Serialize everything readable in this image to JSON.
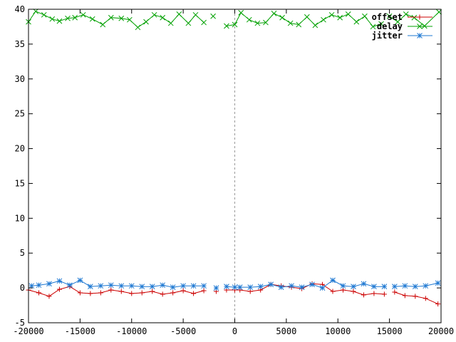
{
  "chart_data": {
    "type": "line",
    "xlim": [
      -20000,
      20000
    ],
    "ylim": [
      -5,
      40
    ],
    "x_ticks": [
      -20000,
      -15000,
      -10000,
      -5000,
      0,
      5000,
      10000,
      15000,
      20000
    ],
    "y_ticks": [
      -5,
      0,
      5,
      10,
      15,
      20,
      25,
      30,
      35,
      40
    ],
    "grid": false,
    "zero_line": "vertical dashed line at x=0",
    "legend_position": "top-right",
    "colors": {
      "offset": "#cc0000",
      "delay": "#00a000",
      "jitter": "#1e78d2",
      "zero_line": "#999999"
    },
    "series": [
      {
        "name": "offset",
        "marker": "plus",
        "segments": [
          [
            [
              -20000,
              -0.3
            ],
            [
              -19000,
              -0.7
            ],
            [
              -18000,
              -1.2
            ],
            [
              -17000,
              -0.2
            ],
            [
              -16000,
              0.2
            ],
            [
              -15000,
              -0.7
            ],
            [
              -14000,
              -0.8
            ],
            [
              -13000,
              -0.7
            ],
            [
              -12000,
              -0.3
            ],
            [
              -11000,
              -0.5
            ],
            [
              -10000,
              -0.8
            ],
            [
              -9000,
              -0.7
            ],
            [
              -8000,
              -0.5
            ],
            [
              -7000,
              -0.9
            ],
            [
              -6000,
              -0.7
            ],
            [
              -5000,
              -0.4
            ],
            [
              -4000,
              -0.8
            ],
            [
              -3000,
              -0.4
            ]
          ],
          [
            [
              -1800,
              -0.5
            ]
          ],
          [
            [
              -800,
              -0.3
            ],
            [
              0,
              -0.3
            ],
            [
              500,
              -0.3
            ],
            [
              1500,
              -0.5
            ],
            [
              2500,
              -0.3
            ],
            [
              3500,
              0.5
            ],
            [
              4500,
              0.3
            ],
            [
              5500,
              0.1
            ],
            [
              6500,
              -0.1
            ],
            [
              7500,
              0.6
            ],
            [
              8500,
              0.5
            ],
            [
              9500,
              -0.5
            ],
            [
              10500,
              -0.3
            ],
            [
              11500,
              -0.5
            ],
            [
              12500,
              -1.0
            ],
            [
              13500,
              -0.8
            ],
            [
              14500,
              -0.9
            ]
          ],
          [
            [
              15500,
              -0.6
            ],
            [
              16500,
              -1.1
            ],
            [
              17500,
              -1.2
            ],
            [
              18500,
              -1.5
            ],
            [
              19700,
              -2.3
            ]
          ]
        ]
      },
      {
        "name": "delay",
        "marker": "cross",
        "segments": [
          [
            [
              -20000,
              38.2
            ],
            [
              -19300,
              39.7
            ],
            [
              -18500,
              39.2
            ],
            [
              -17700,
              38.6
            ],
            [
              -17000,
              38.3
            ],
            [
              -16200,
              38.7
            ],
            [
              -15500,
              38.8
            ],
            [
              -14700,
              39.2
            ],
            [
              -13800,
              38.6
            ],
            [
              -12800,
              37.8
            ],
            [
              -12000,
              38.8
            ],
            [
              -11000,
              38.7
            ],
            [
              -10200,
              38.5
            ],
            [
              -9400,
              37.4
            ],
            [
              -8600,
              38.2
            ],
            [
              -7800,
              39.2
            ],
            [
              -7000,
              38.8
            ],
            [
              -6200,
              38.0
            ],
            [
              -5400,
              39.3
            ],
            [
              -4500,
              38.0
            ],
            [
              -3800,
              39.2
            ],
            [
              -3000,
              38.1
            ]
          ],
          [
            [
              -2100,
              39.0
            ]
          ],
          [
            [
              -800,
              37.6
            ],
            [
              0,
              37.8
            ],
            [
              600,
              39.5
            ],
            [
              1400,
              38.5
            ],
            [
              2200,
              38.0
            ],
            [
              3000,
              38.1
            ],
            [
              3800,
              39.4
            ],
            [
              4600,
              38.8
            ],
            [
              5400,
              38.0
            ],
            [
              6200,
              37.8
            ],
            [
              7000,
              38.9
            ],
            [
              7800,
              37.7
            ],
            [
              8600,
              38.5
            ],
            [
              9400,
              39.2
            ],
            [
              10200,
              38.8
            ],
            [
              11000,
              39.3
            ],
            [
              11800,
              38.2
            ],
            [
              12600,
              39.0
            ],
            [
              13400,
              37.5
            ],
            [
              14200,
              37.9
            ]
          ],
          [
            [
              15000,
              39.0
            ],
            [
              15800,
              38.2
            ],
            [
              16600,
              39.3
            ],
            [
              17400,
              38.8
            ],
            [
              18400,
              37.6
            ],
            [
              19800,
              39.6
            ]
          ]
        ]
      },
      {
        "name": "jitter",
        "marker": "star",
        "segments": [
          [
            [
              -19700,
              0.3
            ],
            [
              -19000,
              0.4
            ],
            [
              -18000,
              0.6
            ],
            [
              -17000,
              1.0
            ],
            [
              -16000,
              0.4
            ],
            [
              -15000,
              1.1
            ],
            [
              -14000,
              0.2
            ],
            [
              -13000,
              0.3
            ],
            [
              -12000,
              0.4
            ],
            [
              -11000,
              0.3
            ],
            [
              -10000,
              0.3
            ],
            [
              -9000,
              0.2
            ],
            [
              -8000,
              0.2
            ],
            [
              -7000,
              0.4
            ],
            [
              -6000,
              0.1
            ],
            [
              -5000,
              0.3
            ],
            [
              -4000,
              0.3
            ],
            [
              -3000,
              0.3
            ]
          ],
          [
            [
              -1800,
              0.0
            ]
          ],
          [
            [
              -800,
              0.2
            ],
            [
              0,
              0.1
            ],
            [
              500,
              0.1
            ],
            [
              1500,
              0.1
            ],
            [
              2500,
              0.2
            ],
            [
              3500,
              0.5
            ],
            [
              4500,
              0.1
            ],
            [
              5500,
              0.3
            ],
            [
              6500,
              0.1
            ],
            [
              7500,
              0.5
            ],
            [
              8500,
              0.0
            ],
            [
              9500,
              1.1
            ],
            [
              10500,
              0.3
            ],
            [
              11500,
              0.2
            ],
            [
              12500,
              0.6
            ],
            [
              13500,
              0.2
            ],
            [
              14500,
              0.2
            ]
          ],
          [
            [
              15500,
              0.2
            ],
            [
              16500,
              0.3
            ],
            [
              17500,
              0.2
            ],
            [
              18500,
              0.3
            ],
            [
              19700,
              0.7
            ]
          ]
        ]
      }
    ]
  }
}
